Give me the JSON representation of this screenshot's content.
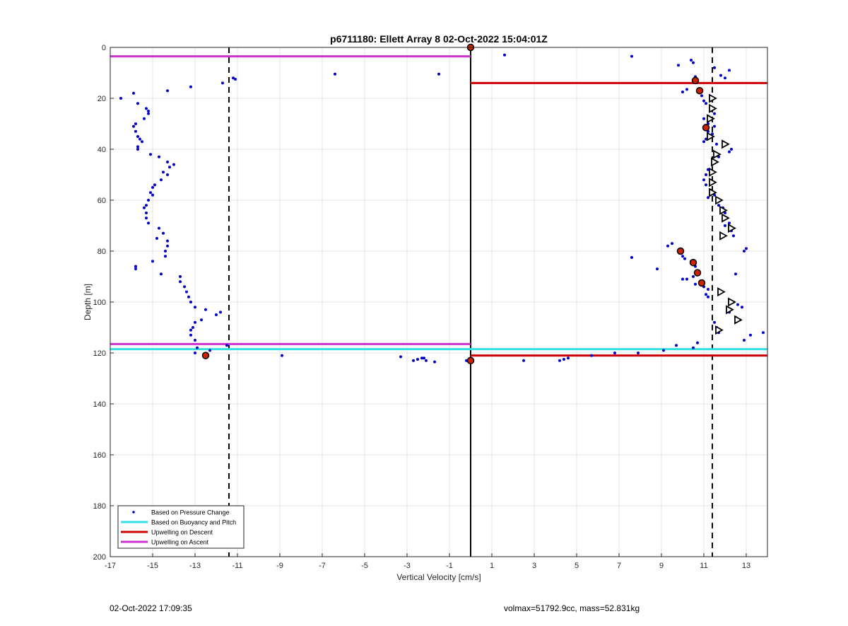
{
  "chart_data": {
    "type": "scatter",
    "title": "p6711180: Ellett Array 8 02-Oct-2022 15:04:01Z",
    "xlabel": "Vertical Velocity [cm/s]",
    "ylabel": "Depth [m]",
    "xlim": [
      -17,
      14
    ],
    "ylim": [
      0,
      200
    ],
    "y_reversed": true,
    "grid": true,
    "xticks": [
      -17,
      -15,
      -13,
      -11,
      -9,
      -7,
      -5,
      -3,
      -1,
      1,
      3,
      5,
      7,
      9,
      11,
      13
    ],
    "yticks": [
      0,
      20,
      40,
      60,
      80,
      100,
      120,
      140,
      160,
      180,
      200
    ],
    "legend": {
      "placement": "bottom-left",
      "entries": [
        {
          "label": "Based on Pressure Change",
          "color": "#0000cc",
          "style": "dot"
        },
        {
          "label": "Based on Buoyancy and Pitch",
          "color": "#33e0e8",
          "style": "line"
        },
        {
          "label": "Upwelling on Descent",
          "color": "#cc0000",
          "style": "line"
        },
        {
          "label": "Upwelling on Ascent",
          "color": "#cc33cc",
          "style": "line"
        }
      ]
    },
    "reference_lines": [
      {
        "name": "dashed-left",
        "x": -11.4,
        "style": "dashed",
        "color": "#000000"
      },
      {
        "name": "zero-line",
        "x": 0,
        "style": "solid",
        "color": "#000000"
      },
      {
        "name": "dashed-right",
        "x": 11.4,
        "style": "dashed",
        "color": "#000000"
      }
    ],
    "series": [
      {
        "name": "Based on Pressure Change",
        "color": "#0000cc",
        "points": [
          [
            -16.5,
            20
          ],
          [
            -15.9,
            18
          ],
          [
            -15.7,
            22
          ],
          [
            -15.3,
            24
          ],
          [
            -15.2,
            25
          ],
          [
            -15.2,
            26
          ],
          [
            -15.4,
            28
          ],
          [
            -15.8,
            30
          ],
          [
            -15.9,
            31
          ],
          [
            -15.8,
            33
          ],
          [
            -15.7,
            35
          ],
          [
            -15.6,
            36
          ],
          [
            -15.5,
            37
          ],
          [
            -15.7,
            39
          ],
          [
            -15.7,
            40
          ],
          [
            -15.1,
            42
          ],
          [
            -14.7,
            43
          ],
          [
            -14.3,
            45
          ],
          [
            -14.0,
            46
          ],
          [
            -14.2,
            47
          ],
          [
            -14.5,
            49
          ],
          [
            -14.3,
            50
          ],
          [
            -14.6,
            52
          ],
          [
            -14.9,
            54
          ],
          [
            -15.0,
            55
          ],
          [
            -15.1,
            57
          ],
          [
            -15.0,
            58
          ],
          [
            -15.2,
            60
          ],
          [
            -15.3,
            62
          ],
          [
            -15.4,
            63
          ],
          [
            -15.3,
            65
          ],
          [
            -15.3,
            67
          ],
          [
            -15.2,
            69
          ],
          [
            -14.7,
            71
          ],
          [
            -14.5,
            73
          ],
          [
            -14.8,
            75
          ],
          [
            -14.3,
            76
          ],
          [
            -14.3,
            78
          ],
          [
            -14.4,
            80
          ],
          [
            -14.4,
            82
          ],
          [
            -15.0,
            84
          ],
          [
            -15.8,
            86
          ],
          [
            -15.8,
            87
          ],
          [
            -14.6,
            89
          ],
          [
            -13.7,
            90
          ],
          [
            -13.7,
            92
          ],
          [
            -13.5,
            94
          ],
          [
            -13.4,
            96
          ],
          [
            -13.3,
            98
          ],
          [
            -13.2,
            100
          ],
          [
            -13.0,
            102
          ],
          [
            -12.5,
            103
          ],
          [
            -12.7,
            107
          ],
          [
            -13.0,
            108
          ],
          [
            -13.1,
            110
          ],
          [
            -13.2,
            111
          ],
          [
            -13.2,
            113
          ],
          [
            -13.0,
            115
          ],
          [
            -12.0,
            105
          ],
          [
            -11.8,
            104
          ],
          [
            -11.5,
            117
          ],
          [
            -12.9,
            118
          ],
          [
            -13.0,
            120
          ],
          [
            -12.6,
            121
          ],
          [
            -12.3,
            119
          ],
          [
            -14.3,
            17
          ],
          [
            -13.2,
            15.5
          ],
          [
            -11.7,
            14
          ],
          [
            -11.2,
            12
          ],
          [
            -11.1,
            12.5
          ],
          [
            -8.9,
            121
          ],
          [
            -6.4,
            10.5
          ],
          [
            -1.5,
            10.5
          ],
          [
            -3.3,
            121.5
          ],
          [
            -2.7,
            123
          ],
          [
            -2.5,
            122.5
          ],
          [
            -2.3,
            122
          ],
          [
            -2.2,
            122
          ],
          [
            -2.1,
            123
          ],
          [
            -1.7,
            123.5
          ],
          [
            -0.2,
            123
          ],
          [
            1.6,
            3
          ],
          [
            2.5,
            123
          ],
          [
            4.2,
            123
          ],
          [
            4.4,
            122.5
          ],
          [
            4.6,
            122
          ],
          [
            5.7,
            121
          ],
          [
            6.8,
            120
          ],
          [
            7.6,
            3.5
          ],
          [
            7.6,
            82.5
          ],
          [
            7.9,
            120
          ],
          [
            8.8,
            87
          ],
          [
            9.1,
            119
          ],
          [
            9.7,
            117
          ],
          [
            9.8,
            7
          ],
          [
            10.0,
            17.5
          ],
          [
            10.2,
            16.5
          ],
          [
            10.4,
            5
          ],
          [
            10.5,
            6
          ],
          [
            10.6,
            11.5
          ],
          [
            10.5,
            118
          ],
          [
            10.7,
            116
          ],
          [
            10.9,
            19
          ],
          [
            11.0,
            21
          ],
          [
            11.1,
            22
          ],
          [
            11.3,
            24
          ],
          [
            11.5,
            26
          ],
          [
            11.2,
            27
          ],
          [
            11.0,
            28
          ],
          [
            11.2,
            30
          ],
          [
            11.5,
            31
          ],
          [
            11.2,
            33
          ],
          [
            11.4,
            34
          ],
          [
            11.1,
            36
          ],
          [
            11.0,
            37
          ],
          [
            11.6,
            38
          ],
          [
            12.3,
            40
          ],
          [
            12.2,
            41
          ],
          [
            11.7,
            43
          ],
          [
            11.4,
            46
          ],
          [
            11.2,
            48
          ],
          [
            11.1,
            50
          ],
          [
            11.0,
            52
          ],
          [
            11.1,
            54
          ],
          [
            11.3,
            56
          ],
          [
            11.5,
            58
          ],
          [
            11.2,
            59
          ],
          [
            11.7,
            62
          ],
          [
            11.9,
            63
          ],
          [
            12.0,
            65
          ],
          [
            12.1,
            67
          ],
          [
            12.2,
            69
          ],
          [
            12.0,
            70
          ],
          [
            12.3,
            72
          ],
          [
            12.4,
            74
          ],
          [
            13.0,
            79
          ],
          [
            12.9,
            80
          ],
          [
            9.3,
            78
          ],
          [
            9.5,
            77
          ],
          [
            9.8,
            80
          ],
          [
            10.0,
            82
          ],
          [
            10.1,
            83
          ],
          [
            10.4,
            84
          ],
          [
            10.6,
            86
          ],
          [
            10.7,
            88
          ],
          [
            10.5,
            90
          ],
          [
            10.2,
            91
          ],
          [
            10.0,
            91
          ],
          [
            10.6,
            93
          ],
          [
            11.0,
            94
          ],
          [
            11.2,
            95
          ],
          [
            11.1,
            97
          ],
          [
            11.2,
            98
          ],
          [
            12.4,
            100
          ],
          [
            12.6,
            101
          ],
          [
            12.8,
            102
          ],
          [
            12.2,
            104
          ],
          [
            12.5,
            106
          ],
          [
            12.7,
            107
          ],
          [
            13.2,
            113
          ],
          [
            13.8,
            112
          ],
          [
            12.9,
            115
          ],
          [
            12.5,
            89
          ],
          [
            12.0,
            12
          ],
          [
            11.8,
            11
          ],
          [
            12.2,
            9
          ],
          [
            11.5,
            8
          ],
          [
            11.6,
            110
          ],
          [
            11.7,
            112
          ],
          [
            11.5,
            108
          ]
        ]
      }
    ],
    "level_lines": [
      {
        "name": "Upwelling on Ascent",
        "color": "#cc33cc",
        "depth": 3.5,
        "x_from": -17,
        "x_to": 0
      },
      {
        "name": "Upwelling on Descent",
        "color": "#cc0000",
        "depth": 14,
        "x_from": 0,
        "x_to": 14
      },
      {
        "name": "Upwelling on Ascent",
        "color": "#cc33cc",
        "depth": 116.5,
        "x_from": -17,
        "x_to": 0
      },
      {
        "name": "Based on Buoyancy and Pitch",
        "color": "#33e0e8",
        "depth": 118.5,
        "x_from": -17,
        "x_to": 14
      },
      {
        "name": "Upwelling on Descent",
        "color": "#cc0000",
        "depth": 121,
        "x_from": 0,
        "x_to": 14
      }
    ],
    "triangle_markers": [
      {
        "x": 11.4,
        "y": 20
      },
      {
        "x": 11.4,
        "y": 24
      },
      {
        "x": 11.3,
        "y": 28
      },
      {
        "x": 11.3,
        "y": 35
      },
      {
        "x": 12.0,
        "y": 38
      },
      {
        "x": 11.6,
        "y": 42
      },
      {
        "x": 11.5,
        "y": 45
      },
      {
        "x": 11.4,
        "y": 49
      },
      {
        "x": 11.4,
        "y": 53
      },
      {
        "x": 11.4,
        "y": 57
      },
      {
        "x": 11.7,
        "y": 60
      },
      {
        "x": 11.9,
        "y": 64
      },
      {
        "x": 12.0,
        "y": 67
      },
      {
        "x": 12.3,
        "y": 71
      },
      {
        "x": 11.9,
        "y": 74
      },
      {
        "x": 11.8,
        "y": 96
      },
      {
        "x": 12.3,
        "y": 100
      },
      {
        "x": 12.2,
        "y": 103
      },
      {
        "x": 12.6,
        "y": 107
      },
      {
        "x": 11.7,
        "y": 111
      }
    ],
    "highlight_markers": [
      {
        "x": 0,
        "y": 0
      },
      {
        "x": 10.6,
        "y": 13
      },
      {
        "x": 10.8,
        "y": 17
      },
      {
        "x": 11.1,
        "y": 31.5
      },
      {
        "x": 9.9,
        "y": 80
      },
      {
        "x": 10.5,
        "y": 84.5
      },
      {
        "x": 10.7,
        "y": 88.5
      },
      {
        "x": 10.9,
        "y": 92.5
      },
      {
        "x": -12.5,
        "y": 121
      },
      {
        "x": 0,
        "y": 123
      }
    ]
  },
  "footer": {
    "timestamp": "02-Oct-2022 17:09:35",
    "info": "volmax=51792.9cc, mass=52.831kg"
  }
}
